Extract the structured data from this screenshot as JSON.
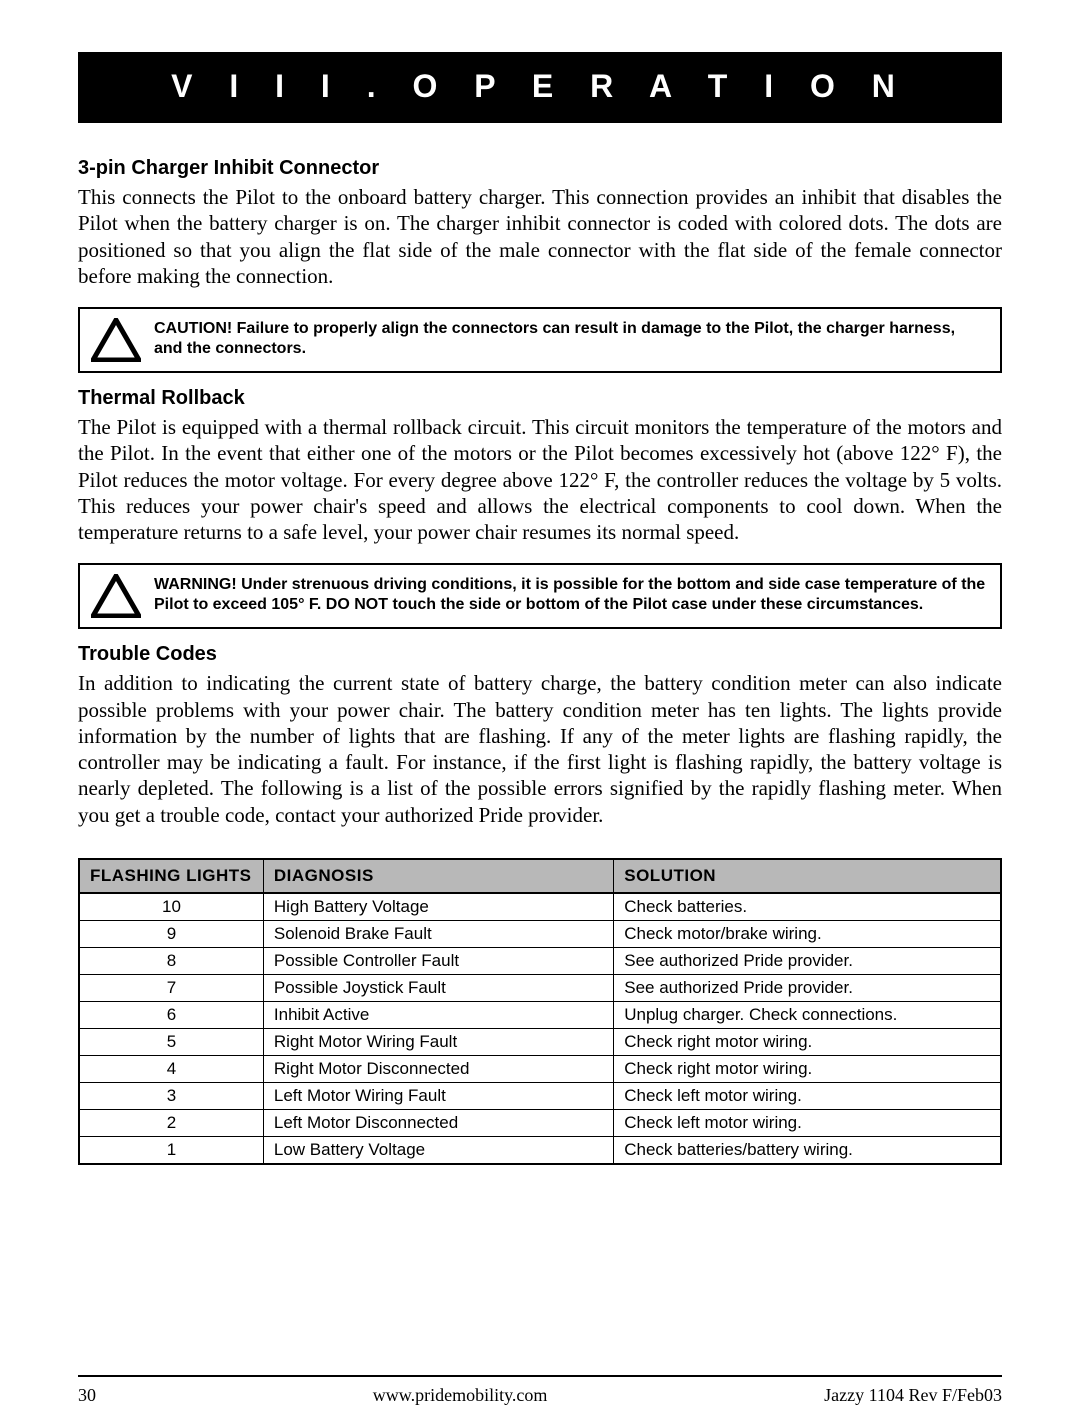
{
  "chapter_title": "V I I I .   O P E R A T I O N",
  "sections": {
    "s1": {
      "heading": "3-pin Charger Inhibit Connector",
      "body": "This connects the Pilot to the onboard battery charger. This connection provides an inhibit that disables the Pilot when the battery charger is on. The charger inhibit connector is coded with colored dots. The dots are positioned so that you align the flat side of the male connector with the flat side of the female connector before making the connection."
    },
    "s2": {
      "heading": "Thermal Rollback",
      "body": "The Pilot is equipped with a thermal rollback circuit. This circuit monitors the temperature of the motors and the Pilot. In the event that either one of the motors or the Pilot becomes excessively hot (above 122° F), the Pilot reduces the motor voltage. For every degree above 122° F, the controller reduces the voltage by 5 volts. This reduces your power chair's speed and allows the electrical components to cool down. When the temperature returns to a safe level, your power chair resumes its normal speed."
    },
    "s3": {
      "heading": "Trouble Codes",
      "body": "In addition to indicating the current state of battery charge, the battery condition meter can also indicate possible problems with your power chair. The battery condition meter has ten lights. The lights provide information by the number of lights that are flashing. If any of the meter lights are flashing rapidly, the controller may be indicating a fault. For instance, if the first light is flashing rapidly, the battery voltage is nearly depleted. The following is a list of the possible errors signified by the rapidly flashing meter. When you get a trouble code, contact your authorized Pride provider."
    }
  },
  "callouts": {
    "caution": "CAUTION! Failure to properly align the connectors can result in damage to the Pilot, the charger harness, and the connectors.",
    "warning": "WARNING! Under strenuous driving conditions, it is possible for the bottom and side case temperature of the Pilot to exceed 105° F. DO NOT touch the side or bottom of the Pilot case under these circumstances."
  },
  "trouble_table": {
    "type": "table",
    "header_bg": "#b8b8b8",
    "border_color": "#000000",
    "columns": [
      "FLASHING LIGHTS",
      "DIAGNOSIS",
      "SOLUTION"
    ],
    "rows": [
      [
        "10",
        "High Battery Voltage",
        "Check batteries."
      ],
      [
        "9",
        "Solenoid Brake Fault",
        "Check motor/brake wiring."
      ],
      [
        "8",
        "Possible Controller Fault",
        "See authorized Pride provider."
      ],
      [
        "7",
        "Possible Joystick Fault",
        "See authorized Pride provider."
      ],
      [
        "6",
        "Inhibit Active",
        "Unplug charger. Check connections."
      ],
      [
        "5",
        "Right Motor Wiring Fault",
        "Check right motor wiring."
      ],
      [
        "4",
        "Right Motor Disconnected",
        "Check right motor wiring."
      ],
      [
        "3",
        "Left Motor Wiring Fault",
        "Check left motor wiring."
      ],
      [
        "2",
        "Left Motor Disconnected",
        "Check left motor wiring."
      ],
      [
        "1",
        "Low Battery Voltage",
        "Check batteries/battery wiring."
      ]
    ]
  },
  "footer": {
    "page_number": "30",
    "url": "www.pridemobility.com",
    "doc_rev": "Jazzy 1104 Rev F/Feb03"
  },
  "colors": {
    "text": "#000000",
    "background": "#ffffff",
    "banner_bg": "#000000",
    "banner_fg": "#ffffff"
  }
}
